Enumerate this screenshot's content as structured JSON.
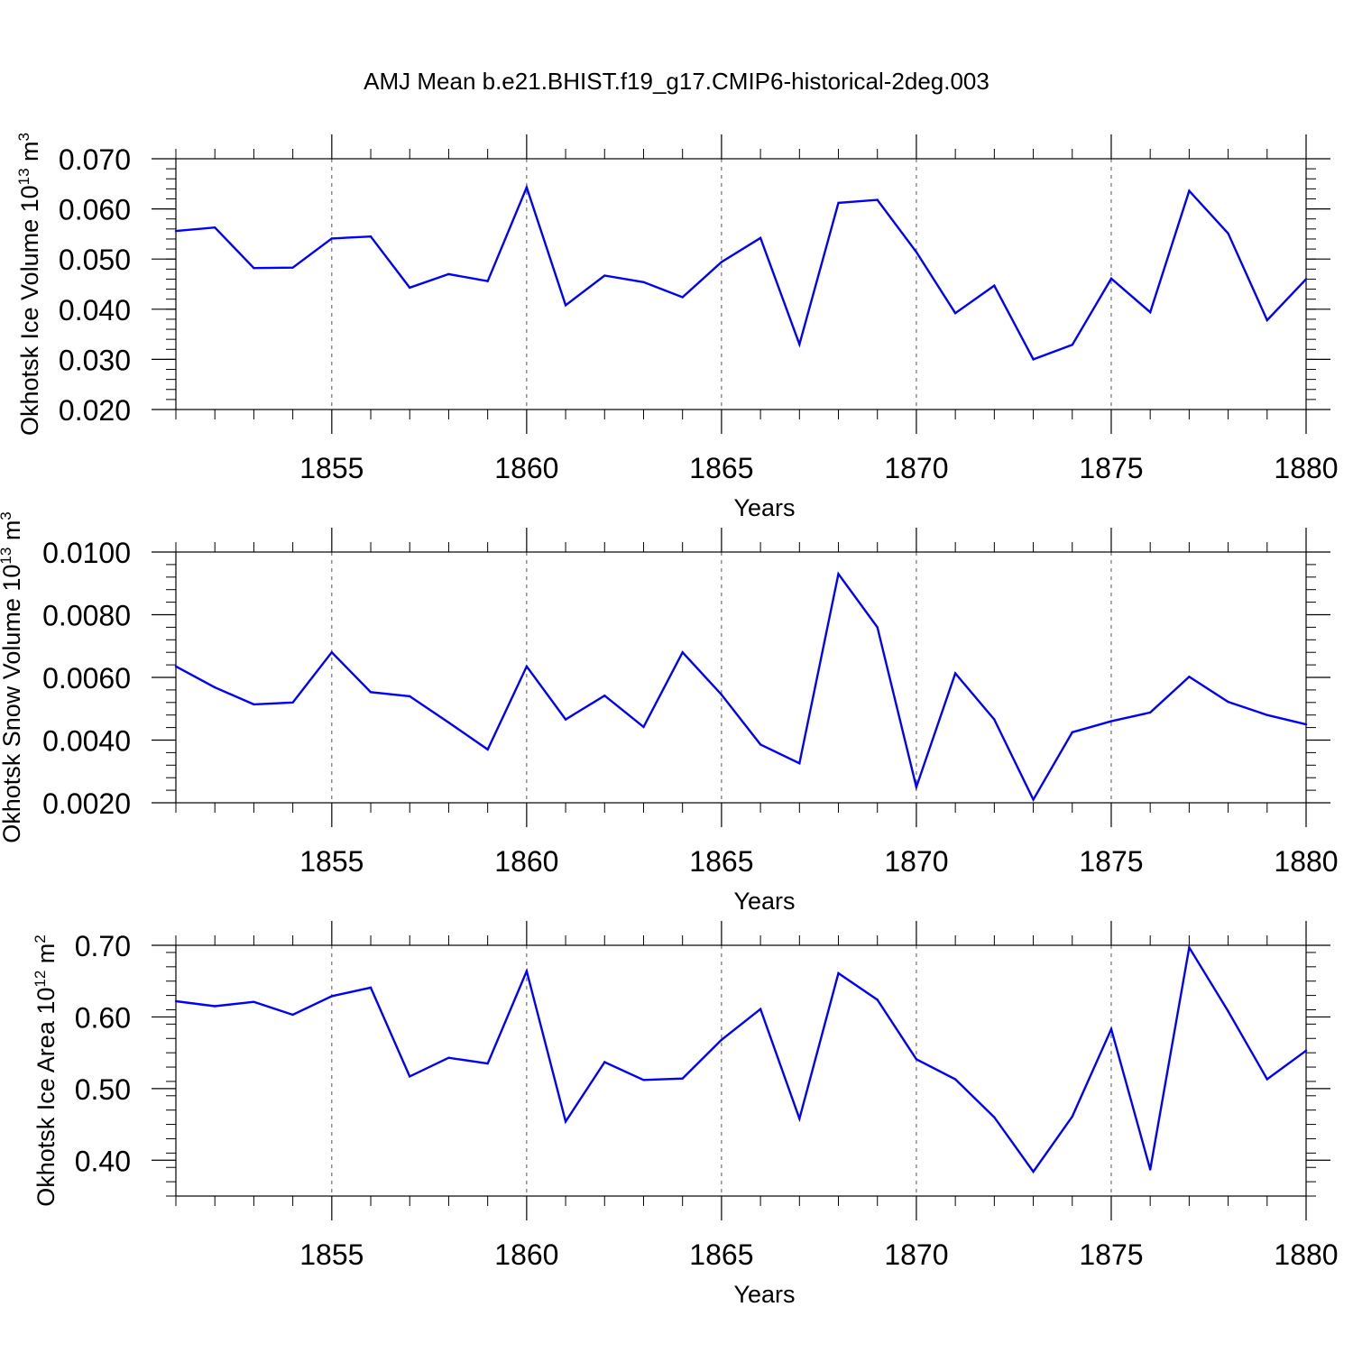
{
  "title": "AMJ Mean b.e21.BHIST.f19_g17.CMIP6-historical-2deg.003",
  "colors": {
    "series": "#0000ff",
    "axis": "#000000",
    "grid": "#555555"
  },
  "chart_data": [
    {
      "type": "line",
      "ylabel": {
        "text": "Okhotsk Ice Volume 10",
        "exp": "13",
        "unit": " m",
        "unit_exp": "3"
      },
      "xlabel": "Years",
      "xlim": [
        1851,
        1880
      ],
      "ylim": [
        0.02,
        0.07
      ],
      "xticks": [
        1855,
        1860,
        1865,
        1870,
        1875,
        1880
      ],
      "yticks": [
        0.02,
        0.03,
        0.04,
        0.05,
        0.06,
        0.07
      ],
      "ytick_labels": [
        "0.020",
        "0.030",
        "0.040",
        "0.050",
        "0.060",
        "0.070"
      ],
      "grid": "vertical dashed at major x ticks",
      "x": [
        1851,
        1852,
        1853,
        1854,
        1855,
        1856,
        1857,
        1858,
        1859,
        1860,
        1861,
        1862,
        1863,
        1864,
        1865,
        1866,
        1867,
        1868,
        1869,
        1870,
        1871,
        1872,
        1873,
        1874,
        1875,
        1876,
        1877,
        1878,
        1879,
        1880
      ],
      "values": [
        0.0556,
        0.0563,
        0.0482,
        0.0483,
        0.0541,
        0.0545,
        0.0443,
        0.047,
        0.0456,
        0.0643,
        0.0408,
        0.0467,
        0.0454,
        0.0424,
        0.0494,
        0.0542,
        0.033,
        0.0612,
        0.0618,
        0.0514,
        0.0392,
        0.0447,
        0.03,
        0.0329,
        0.0461,
        0.0394,
        0.0636,
        0.0551,
        0.0378,
        0.046
      ]
    },
    {
      "type": "line",
      "ylabel": {
        "text": "Okhotsk Snow Volume 10",
        "exp": "13",
        "unit": " m",
        "unit_exp": "3"
      },
      "xlabel": "Years",
      "xlim": [
        1851,
        1880
      ],
      "ylim": [
        0.002,
        0.01
      ],
      "xticks": [
        1855,
        1860,
        1865,
        1870,
        1875,
        1880
      ],
      "yticks": [
        0.002,
        0.004,
        0.006,
        0.008,
        0.01
      ],
      "ytick_labels": [
        "0.0020",
        "0.0040",
        "0.0060",
        "0.0080",
        "0.0100"
      ],
      "grid": "vertical dashed at major x ticks",
      "x": [
        1851,
        1852,
        1853,
        1854,
        1855,
        1856,
        1857,
        1858,
        1859,
        1860,
        1861,
        1862,
        1863,
        1864,
        1865,
        1866,
        1867,
        1868,
        1869,
        1870,
        1871,
        1872,
        1873,
        1874,
        1875,
        1876,
        1877,
        1878,
        1879,
        1880
      ],
      "values": [
        0.00635,
        0.00568,
        0.00514,
        0.0052,
        0.0068,
        0.00553,
        0.0054,
        0.00456,
        0.0037,
        0.00635,
        0.00466,
        0.00542,
        0.00442,
        0.0068,
        0.00545,
        0.00386,
        0.00326,
        0.0093,
        0.0076,
        0.0025,
        0.00613,
        0.00466,
        0.0021,
        0.00425,
        0.0046,
        0.00488,
        0.00602,
        0.00522,
        0.0048,
        0.0045
      ]
    },
    {
      "type": "line",
      "ylabel": {
        "text": "Okhotsk Ice Area 10",
        "exp": "12",
        "unit": " m",
        "unit_exp": "2"
      },
      "xlabel": "Years",
      "xlim": [
        1851,
        1880
      ],
      "ylim": [
        0.35,
        0.7
      ],
      "xticks": [
        1855,
        1860,
        1865,
        1870,
        1875,
        1880
      ],
      "yticks": [
        0.4,
        0.5,
        0.6,
        0.7
      ],
      "ytick_labels": [
        "0.40",
        "0.50",
        "0.60",
        "0.70"
      ],
      "grid": "vertical dashed at major x ticks",
      "x": [
        1851,
        1852,
        1853,
        1854,
        1855,
        1856,
        1857,
        1858,
        1859,
        1860,
        1861,
        1862,
        1863,
        1864,
        1865,
        1866,
        1867,
        1868,
        1869,
        1870,
        1871,
        1872,
        1873,
        1874,
        1875,
        1876,
        1877,
        1878,
        1879,
        1880
      ],
      "values": [
        0.622,
        0.615,
        0.621,
        0.603,
        0.629,
        0.641,
        0.517,
        0.543,
        0.535,
        0.664,
        0.454,
        0.537,
        0.512,
        0.514,
        0.568,
        0.611,
        0.458,
        0.661,
        0.624,
        0.541,
        0.513,
        0.46,
        0.384,
        0.461,
        0.583,
        0.387,
        0.697,
        0.608,
        0.513,
        0.553
      ]
    }
  ]
}
